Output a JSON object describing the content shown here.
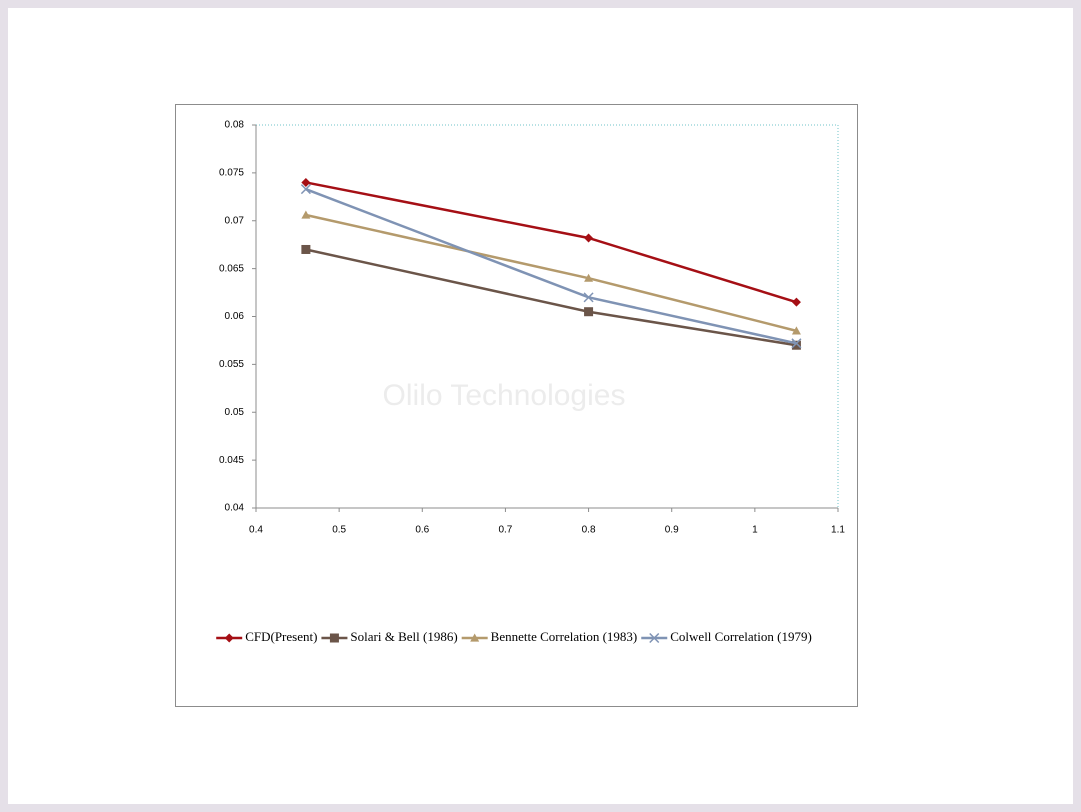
{
  "chart_data": {
    "type": "line",
    "annotation": "Olilo Technologies",
    "x": [
      0.46,
      0.8,
      1.05
    ],
    "series": [
      {
        "name": "CFD(Present)",
        "color": "#a50f15",
        "marker": "diamond",
        "values": [
          0.074,
          0.0682,
          0.0615
        ]
      },
      {
        "name": "Solari & Bell (1986)",
        "color": "#6b5549",
        "marker": "square",
        "values": [
          0.067,
          0.0605,
          0.057
        ]
      },
      {
        "name": "Bennette Correlation (1983)",
        "color": "#b49a6c",
        "marker": "triangle",
        "values": [
          0.0706,
          0.064,
          0.0585
        ]
      },
      {
        "name": "Colwell Correlation (1979)",
        "color": "#7f93b4",
        "marker": "x",
        "values": [
          0.0733,
          0.062,
          0.0572
        ]
      }
    ],
    "xlim": [
      0.4,
      1.1
    ],
    "xticks": [
      0.4,
      0.5,
      0.6,
      0.7,
      0.8,
      0.9,
      1,
      1.1
    ],
    "ylim": [
      0.04,
      0.08
    ],
    "yticks": [
      0.04,
      0.045,
      0.05,
      0.055,
      0.06,
      0.065,
      0.07,
      0.075,
      0.08
    ],
    "grid": false,
    "legend": "bottom"
  }
}
